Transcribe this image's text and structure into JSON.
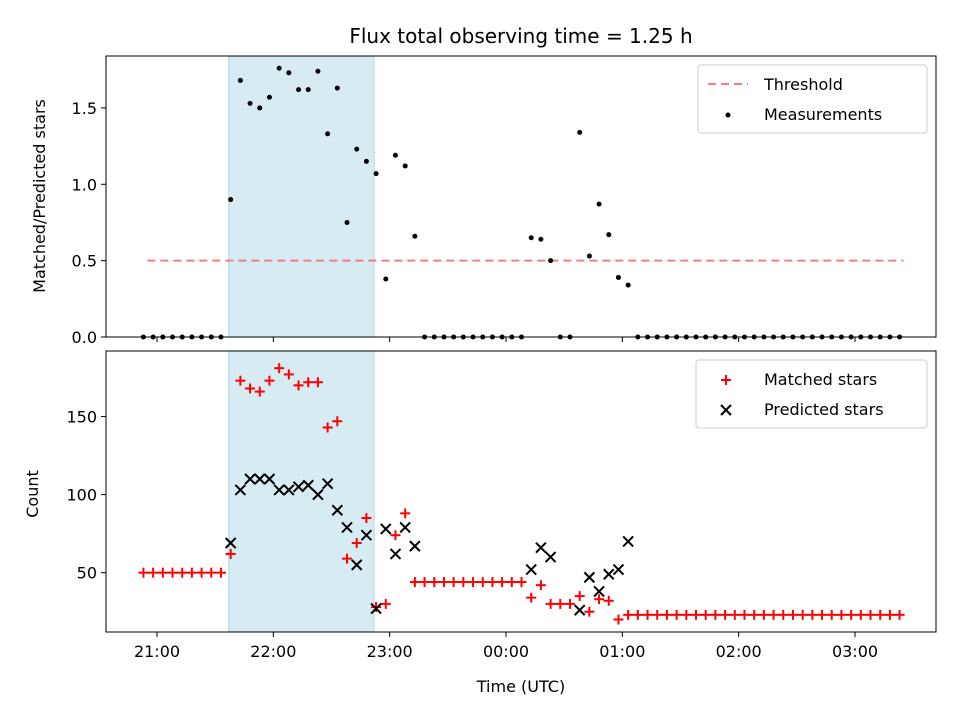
{
  "chart_data": [
    {
      "type": "scatter",
      "title": "Flux total observing time = 1.25 h",
      "xlabel": "",
      "ylabel": "Matched/Predicted stars",
      "ylim": [
        0,
        1.84
      ],
      "yticks": [
        "0.0",
        "0.5",
        "1.0",
        "1.5"
      ],
      "ytick_values": [
        0,
        0.5,
        1.0,
        1.5
      ],
      "grid": false,
      "legend_position": "top-right",
      "highlight_span": {
        "start": "21:37",
        "end": "22:52",
        "color": "#add8e6"
      },
      "threshold": {
        "name": "Threshold",
        "value": 0.5,
        "x_start": "20:55",
        "x_end": "03:25",
        "color": "#f08080"
      },
      "series": [
        {
          "name": "Measurements",
          "color": "#000000",
          "points": [
            [
              "20:53",
              0
            ],
            [
              "20:58",
              0
            ],
            [
              "21:03",
              0
            ],
            [
              "21:08",
              0
            ],
            [
              "21:13",
              0
            ],
            [
              "21:18",
              0
            ],
            [
              "21:23",
              0
            ],
            [
              "21:28",
              0
            ],
            [
              "21:33",
              0
            ],
            [
              "21:38",
              0.9
            ],
            [
              "21:43",
              1.68
            ],
            [
              "21:48",
              1.53
            ],
            [
              "21:53",
              1.5
            ],
            [
              "21:58",
              1.57
            ],
            [
              "22:03",
              1.76
            ],
            [
              "22:08",
              1.73
            ],
            [
              "22:13",
              1.62
            ],
            [
              "22:18",
              1.62
            ],
            [
              "22:23",
              1.74
            ],
            [
              "22:28",
              1.33
            ],
            [
              "22:33",
              1.63
            ],
            [
              "22:38",
              0.75
            ],
            [
              "22:43",
              1.23
            ],
            [
              "22:48",
              1.15
            ],
            [
              "22:53",
              1.07
            ],
            [
              "22:58",
              0.38
            ],
            [
              "23:03",
              1.19
            ],
            [
              "23:08",
              1.12
            ],
            [
              "23:13",
              0.66
            ],
            [
              "23:18",
              0
            ],
            [
              "23:23",
              0
            ],
            [
              "23:28",
              0
            ],
            [
              "23:33",
              0
            ],
            [
              "23:38",
              0
            ],
            [
              "23:43",
              0
            ],
            [
              "23:48",
              0
            ],
            [
              "23:53",
              0
            ],
            [
              "23:58",
              0
            ],
            [
              "00:03",
              0
            ],
            [
              "00:08",
              0
            ],
            [
              "00:13",
              0.65
            ],
            [
              "00:18",
              0.64
            ],
            [
              "00:23",
              0.5
            ],
            [
              "00:28",
              0
            ],
            [
              "00:33",
              0
            ],
            [
              "00:38",
              1.34
            ],
            [
              "00:43",
              0.53
            ],
            [
              "00:48",
              0.87
            ],
            [
              "00:53",
              0.67
            ],
            [
              "00:58",
              0.39
            ],
            [
              "01:03",
              0.34
            ],
            [
              "01:08",
              0
            ],
            [
              "01:13",
              0
            ],
            [
              "01:18",
              0
            ],
            [
              "01:23",
              0
            ],
            [
              "01:28",
              0
            ],
            [
              "01:33",
              0
            ],
            [
              "01:38",
              0
            ],
            [
              "01:43",
              0
            ],
            [
              "01:48",
              0
            ],
            [
              "01:53",
              0
            ],
            [
              "01:58",
              0
            ],
            [
              "02:03",
              0
            ],
            [
              "02:08",
              0
            ],
            [
              "02:13",
              0
            ],
            [
              "02:18",
              0
            ],
            [
              "02:23",
              0
            ],
            [
              "02:28",
              0
            ],
            [
              "02:33",
              0
            ],
            [
              "02:38",
              0
            ],
            [
              "02:43",
              0
            ],
            [
              "02:48",
              0
            ],
            [
              "02:53",
              0
            ],
            [
              "02:58",
              0
            ],
            [
              "03:03",
              0
            ],
            [
              "03:08",
              0
            ],
            [
              "03:13",
              0
            ],
            [
              "03:18",
              0
            ],
            [
              "03:23",
              0
            ]
          ]
        }
      ]
    },
    {
      "type": "scatter",
      "title": "",
      "xlabel": "Time (UTC)",
      "ylabel": "Count",
      "ylim": [
        12,
        192
      ],
      "yticks": [
        "50",
        "100",
        "150"
      ],
      "ytick_values": [
        50,
        100,
        150
      ],
      "xticks": [
        "21:00",
        "22:00",
        "23:00",
        "00:00",
        "01:00",
        "02:00",
        "03:00"
      ],
      "grid": false,
      "legend_position": "top-right",
      "highlight_span": {
        "start": "21:37",
        "end": "22:52",
        "color": "#add8e6"
      },
      "series": [
        {
          "name": "Matched stars",
          "marker": "+",
          "color": "#ff0000",
          "points": [
            [
              "20:53",
              50
            ],
            [
              "20:58",
              50
            ],
            [
              "21:03",
              50
            ],
            [
              "21:08",
              50
            ],
            [
              "21:13",
              50
            ],
            [
              "21:18",
              50
            ],
            [
              "21:23",
              50
            ],
            [
              "21:28",
              50
            ],
            [
              "21:33",
              50
            ],
            [
              "21:38",
              62
            ],
            [
              "21:43",
              173
            ],
            [
              "21:48",
              168
            ],
            [
              "21:53",
              166
            ],
            [
              "21:58",
              173
            ],
            [
              "22:03",
              181
            ],
            [
              "22:08",
              177
            ],
            [
              "22:13",
              170
            ],
            [
              "22:18",
              172
            ],
            [
              "22:23",
              172
            ],
            [
              "22:28",
              143
            ],
            [
              "22:33",
              147
            ],
            [
              "22:38",
              59
            ],
            [
              "22:43",
              69
            ],
            [
              "22:48",
              85
            ],
            [
              "22:53",
              28
            ],
            [
              "22:58",
              30
            ],
            [
              "23:03",
              74
            ],
            [
              "23:08",
              88
            ],
            [
              "23:13",
              44
            ],
            [
              "23:18",
              44
            ],
            [
              "23:23",
              44
            ],
            [
              "23:28",
              44
            ],
            [
              "23:33",
              44
            ],
            [
              "23:38",
              44
            ],
            [
              "23:43",
              44
            ],
            [
              "23:48",
              44
            ],
            [
              "23:53",
              44
            ],
            [
              "23:58",
              44
            ],
            [
              "00:03",
              44
            ],
            [
              "00:08",
              44
            ],
            [
              "00:13",
              34
            ],
            [
              "00:18",
              42
            ],
            [
              "00:23",
              30
            ],
            [
              "00:28",
              30
            ],
            [
              "00:33",
              30
            ],
            [
              "00:38",
              35
            ],
            [
              "00:43",
              25
            ],
            [
              "00:48",
              33
            ],
            [
              "00:53",
              32
            ],
            [
              "00:58",
              20
            ],
            [
              "01:03",
              23
            ],
            [
              "01:08",
              23
            ],
            [
              "01:13",
              23
            ],
            [
              "01:18",
              23
            ],
            [
              "01:23",
              23
            ],
            [
              "01:28",
              23
            ],
            [
              "01:33",
              23
            ],
            [
              "01:38",
              23
            ],
            [
              "01:43",
              23
            ],
            [
              "01:48",
              23
            ],
            [
              "01:53",
              23
            ],
            [
              "01:58",
              23
            ],
            [
              "02:03",
              23
            ],
            [
              "02:08",
              23
            ],
            [
              "02:13",
              23
            ],
            [
              "02:18",
              23
            ],
            [
              "02:23",
              23
            ],
            [
              "02:28",
              23
            ],
            [
              "02:33",
              23
            ],
            [
              "02:38",
              23
            ],
            [
              "02:43",
              23
            ],
            [
              "02:48",
              23
            ],
            [
              "02:53",
              23
            ],
            [
              "02:58",
              23
            ],
            [
              "03:03",
              23
            ],
            [
              "03:08",
              23
            ],
            [
              "03:13",
              23
            ],
            [
              "03:18",
              23
            ],
            [
              "03:23",
              23
            ]
          ]
        },
        {
          "name": "Predicted stars",
          "marker": "x",
          "color": "#000000",
          "points": [
            [
              "21:38",
              69
            ],
            [
              "21:43",
              103
            ],
            [
              "21:48",
              110
            ],
            [
              "21:53",
              110
            ],
            [
              "21:58",
              110
            ],
            [
              "22:03",
              103
            ],
            [
              "22:08",
              103
            ],
            [
              "22:13",
              105
            ],
            [
              "22:18",
              106
            ],
            [
              "22:23",
              100
            ],
            [
              "22:28",
              107
            ],
            [
              "22:33",
              90
            ],
            [
              "22:38",
              79
            ],
            [
              "22:43",
              55
            ],
            [
              "22:48",
              74
            ],
            [
              "22:53",
              27
            ],
            [
              "22:58",
              78
            ],
            [
              "23:03",
              62
            ],
            [
              "23:08",
              79
            ],
            [
              "23:13",
              67
            ],
            [
              "00:13",
              52
            ],
            [
              "00:18",
              66
            ],
            [
              "00:23",
              60
            ],
            [
              "00:38",
              26
            ],
            [
              "00:43",
              47
            ],
            [
              "00:48",
              38
            ],
            [
              "00:53",
              49
            ],
            [
              "00:58",
              52
            ],
            [
              "01:03",
              70
            ]
          ]
        }
      ]
    }
  ]
}
